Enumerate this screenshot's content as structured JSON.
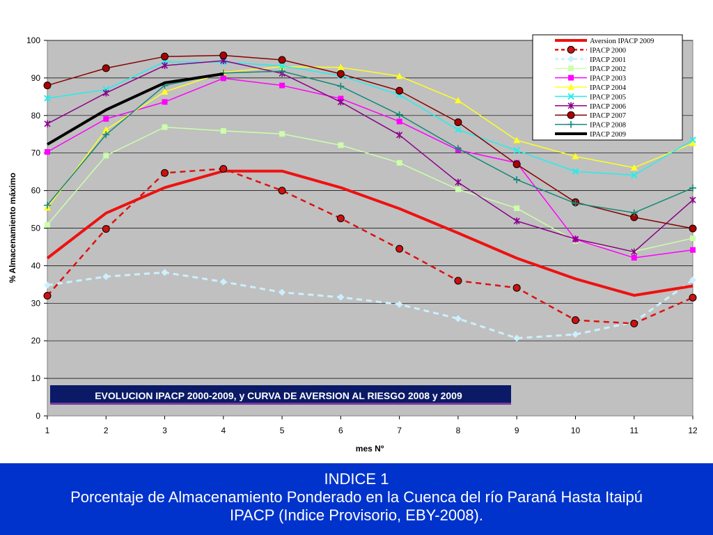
{
  "chart_data": {
    "type": "line",
    "title": "EVOLUCION IPACP 2000-2009, y CURVA DE AVERSION AL RIESGO  2008 y 2009",
    "xlabel": "mes Nº",
    "ylabel": "% Almacenamiento máximo",
    "x": [
      1,
      2,
      3,
      4,
      5,
      6,
      7,
      8,
      9,
      10,
      11,
      12
    ],
    "xlim": [
      1,
      12
    ],
    "ylim": [
      0,
      100
    ],
    "yticks": [
      0,
      10,
      20,
      30,
      40,
      50,
      60,
      70,
      80,
      90,
      100
    ],
    "grid": true,
    "legend_position": "top-right",
    "series": [
      {
        "name": "Aversion IPACP 2009",
        "color": "#ee1111",
        "dash": "solid",
        "width": 4,
        "marker": "none",
        "values": [
          42,
          54,
          60.8,
          65.2,
          65.2,
          60.8,
          55.2,
          48.7,
          42,
          36.5,
          32.1,
          34.6
        ]
      },
      {
        "name": "IPACP 2000",
        "color": "#dd1111",
        "markerFill": "#cc1111",
        "dash": "dashed",
        "width": 2.5,
        "marker": "circle",
        "values": [
          32,
          49.8,
          64.7,
          65.8,
          60,
          52.6,
          44.5,
          36,
          34.1,
          25.5,
          24.6,
          31.5
        ]
      },
      {
        "name": "IPACP 2001",
        "color": "#ccf0ff",
        "dash": "dashed",
        "width": 3,
        "marker": "diamond",
        "values": [
          34.8,
          37.1,
          38.2,
          35.7,
          32.9,
          31.6,
          29.7,
          25.9,
          20.7,
          21.7,
          25,
          36.2
        ]
      },
      {
        "name": "IPACP 2002",
        "color": "#ccffaa",
        "dash": "solid",
        "width": 1.5,
        "marker": "square",
        "values": [
          50.9,
          69.3,
          76.9,
          75.9,
          75.1,
          72.1,
          67.4,
          60.3,
          55.3,
          46.6,
          43.8,
          47.3
        ]
      },
      {
        "name": "IPACP 2003",
        "color": "#ff00ff",
        "dash": "solid",
        "width": 1.5,
        "marker": "square",
        "values": [
          70.3,
          79.1,
          83.6,
          89.9,
          88,
          84.5,
          78.4,
          70.8,
          67.4,
          47,
          42.1,
          44.2
        ]
      },
      {
        "name": "IPACP 2004",
        "color": "#ffff22",
        "dash": "solid",
        "width": 1.5,
        "marker": "triangle",
        "values": [
          55.4,
          76.2,
          86.3,
          91.5,
          93,
          92.8,
          90.5,
          84,
          73.4,
          69.1,
          66.1,
          72.6
        ]
      },
      {
        "name": "IPACP 2005",
        "color": "#22eeee",
        "dash": "solid",
        "width": 1.5,
        "marker": "x",
        "values": [
          84.6,
          86.9,
          94.3,
          94.2,
          93.2,
          90.6,
          85.5,
          76.2,
          70.7,
          65.1,
          64.1,
          73.5
        ]
      },
      {
        "name": "IPACP 2006",
        "color": "#880088",
        "dash": "solid",
        "width": 1.5,
        "marker": "star",
        "values": [
          77.8,
          86,
          93.3,
          94.6,
          91.2,
          83.6,
          74.8,
          62.2,
          51.9,
          47.1,
          43.7,
          57.5
        ]
      },
      {
        "name": "IPACP 2007",
        "color": "#880000",
        "markerFill": "#aa0000",
        "dash": "solid",
        "width": 1.5,
        "marker": "circle",
        "values": [
          88,
          92.6,
          95.7,
          96,
          94.8,
          91.1,
          86.6,
          78.2,
          67,
          56.9,
          52.9,
          49.9
        ]
      },
      {
        "name": "IPACP 2008",
        "color": "#118877",
        "dash": "solid",
        "width": 1.5,
        "marker": "plus",
        "values": [
          56.1,
          74.9,
          88,
          91.3,
          91.8,
          87.8,
          80.2,
          71.2,
          62.9,
          56.6,
          54.1,
          60.7
        ]
      },
      {
        "name": "IPACP 2009",
        "color": "#000000",
        "dash": "solid",
        "width": 4,
        "marker": "none",
        "values": [
          72.3,
          81.5,
          88.7,
          91.1,
          null,
          null,
          null,
          null,
          null,
          null,
          null,
          null
        ]
      }
    ]
  },
  "caption": {
    "line1": "INDICE 1",
    "line2": "Porcentaje de Almacenamiento Ponderado en la Cuenca del río Paraná Hasta Itaipú",
    "line3": "IPACP (Indice Provisorio, EBY-2008)."
  },
  "colors": {
    "plot_background": "#c0c0c0",
    "caption_background": "#0033cc",
    "title_box_background": "#0a1a66"
  }
}
